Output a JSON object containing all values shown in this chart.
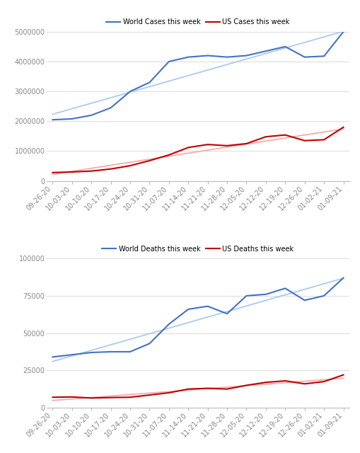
{
  "dates": [
    "09-26-20",
    "10-03-20",
    "10-10-20",
    "10-17-20",
    "10-24-20",
    "10-31-20",
    "11-07-20",
    "11-14-20",
    "11-21-20",
    "11-28-20",
    "12-05-20",
    "12-12-20",
    "12-19-20",
    "12-26-20",
    "01-02-21",
    "01-09-21"
  ],
  "world_cases": [
    2050000,
    2080000,
    2200000,
    2450000,
    3000000,
    3300000,
    4000000,
    4150000,
    4200000,
    4150000,
    4200000,
    4350000,
    4500000,
    4150000,
    4180000,
    5000000
  ],
  "us_cases": [
    280000,
    300000,
    330000,
    400000,
    510000,
    680000,
    870000,
    1120000,
    1220000,
    1180000,
    1250000,
    1480000,
    1540000,
    1350000,
    1380000,
    1800000
  ],
  "world_deaths": [
    34000,
    35500,
    37000,
    37500,
    37500,
    43000,
    56000,
    66000,
    68000,
    63000,
    75000,
    76000,
    80000,
    72000,
    75000,
    87000
  ],
  "us_deaths": [
    7000,
    7200,
    6500,
    6800,
    7000,
    8500,
    10000,
    12500,
    13000,
    12500,
    15000,
    17000,
    18000,
    16000,
    17500,
    22000
  ],
  "world_cases_color": "#4472C4",
  "us_cases_color": "#C00000",
  "world_deaths_color": "#4472C4",
  "us_deaths_color": "#C00000",
  "trend_world_cases_color": "#AACBEE",
  "trend_us_cases_color": "#F5AAAA",
  "trend_world_deaths_color": "#AACBEE",
  "trend_us_deaths_color": "#F5AAAA",
  "cases_ylim": [
    0,
    5000000
  ],
  "deaths_ylim": [
    0,
    100000
  ],
  "cases_yticks": [
    0,
    1000000,
    2000000,
    3000000,
    4000000,
    5000000
  ],
  "deaths_yticks": [
    0,
    25000,
    50000,
    75000,
    100000
  ],
  "cases_title": "World Cases this week",
  "cases_title2": "US Cases this week",
  "deaths_title": "World Deaths this week",
  "deaths_title2": "US Deaths this week",
  "bg_color": "#FFFFFF",
  "grid_color": "#CCCCCC",
  "tick_color": "#888888",
  "label_fontsize": 7,
  "legend_fontsize": 7,
  "line_width": 1.5
}
